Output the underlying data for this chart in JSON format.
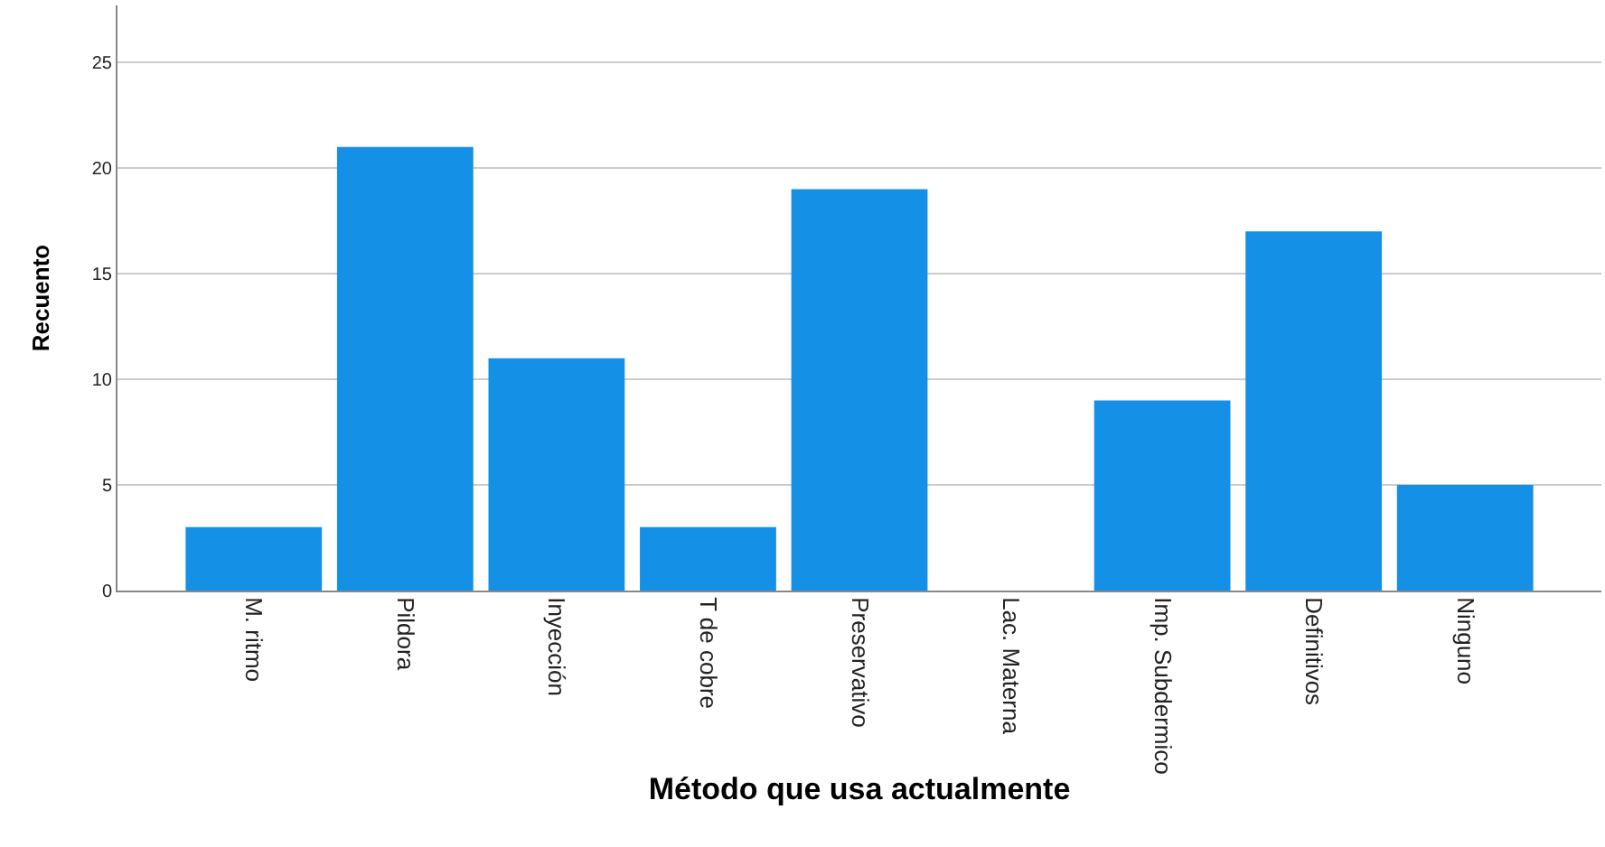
{
  "chart_data": {
    "type": "bar",
    "xlabel": "Método que usa actualmente",
    "ylabel": "Recuento",
    "categories": [
      "M. ritmo",
      "Pildora",
      "Inyección",
      "T de cobre",
      "Preservativo",
      "Lac. Materna",
      "Imp. Subdermico",
      "Definitivos",
      "Ninguno"
    ],
    "values": [
      3,
      21,
      11,
      3,
      19,
      0,
      9,
      17,
      5
    ],
    "color": "#1490e6",
    "ylim": [
      0,
      27.7
    ],
    "yticks": [
      0,
      5,
      10,
      15,
      20,
      25
    ],
    "grid": "y"
  }
}
